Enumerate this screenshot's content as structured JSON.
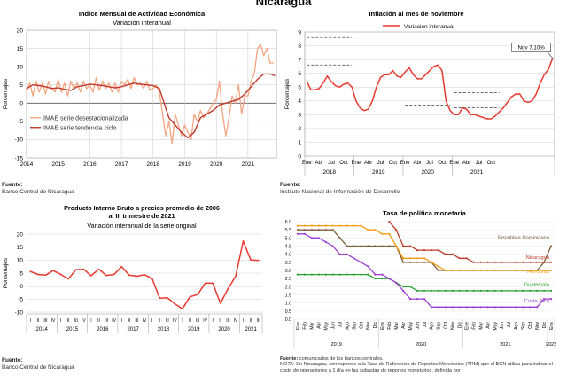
{
  "page_title": "Nicaragua",
  "sources": {
    "p1": {
      "label": "Fuente:",
      "text": "Banco Central de Nicaragua"
    },
    "p2": {
      "label": "Fuente:",
      "text": "Instituto Nacional de Información de  Desarrollo"
    },
    "p3": {
      "label": "Fuente:",
      "text": "Banco Central de Nicaragua"
    },
    "p4": {
      "label": "Fuente:",
      "text": "comunicados de los bancos centrales.",
      "note": "NOTA: En Nicaragua, corresponde a la Tasa de Referencia de Reportos Monetarios (TRM) que el BCN utiliza para indicar el costo de operaciones a 1 día en las subastas de reportos monetarios, definida por"
    }
  },
  "chart_data": [
    {
      "id": "imae",
      "type": "line",
      "title": "Indice Mensual de  Actividad Económica",
      "subtitle": "Variación interanual",
      "ylabel": "Porcentajes",
      "ylim": [
        -15,
        20
      ],
      "yticks": [
        -15,
        -10,
        -5,
        0,
        5,
        10,
        15,
        20
      ],
      "xlim": [
        2014,
        2021.9
      ],
      "xticks": [
        2014,
        2015,
        2016,
        2017,
        2018,
        2019,
        2020,
        2021
      ],
      "grid": true,
      "legend_position": "left-bottom",
      "series": [
        {
          "name": "IMAE serie  desestacionalizada",
          "color": "#f4a582",
          "width": 1.3,
          "x": [
            2014.0,
            2014.1,
            2014.2,
            2014.3,
            2014.4,
            2014.5,
            2014.6,
            2014.7,
            2014.8,
            2014.9,
            2015.0,
            2015.1,
            2015.2,
            2015.3,
            2015.4,
            2015.5,
            2015.6,
            2015.7,
            2015.8,
            2015.9,
            2016.0,
            2016.1,
            2016.2,
            2016.3,
            2016.4,
            2016.5,
            2016.6,
            2016.7,
            2016.8,
            2016.9,
            2017.0,
            2017.1,
            2017.2,
            2017.3,
            2017.4,
            2017.5,
            2017.6,
            2017.7,
            2017.8,
            2017.9,
            2018.0,
            2018.1,
            2018.2,
            2018.3,
            2018.4,
            2018.5,
            2018.6,
            2018.7,
            2018.8,
            2018.9,
            2019.0,
            2019.1,
            2019.2,
            2019.3,
            2019.4,
            2019.5,
            2019.6,
            2019.7,
            2019.8,
            2019.9,
            2020.0,
            2020.1,
            2020.2,
            2020.3,
            2020.4,
            2020.5,
            2020.6,
            2020.7,
            2020.8,
            2020.9,
            2021.0,
            2021.1,
            2021.2,
            2021.3,
            2021.4,
            2021.5,
            2021.6,
            2021.7,
            2021.8
          ],
          "values": [
            3,
            5.5,
            2,
            6,
            3,
            5.5,
            2.5,
            6,
            4,
            3,
            6.5,
            3,
            5.5,
            2,
            6,
            4,
            5.5,
            3,
            6,
            4,
            5,
            3,
            7,
            3.5,
            6,
            4,
            5.5,
            3,
            5.5,
            3,
            6,
            5,
            6.5,
            4,
            7,
            5,
            5.5,
            4,
            6,
            3.5,
            4,
            5,
            3,
            -3,
            -9,
            -5,
            -11,
            -3,
            -6,
            -9,
            -6,
            -8,
            -10,
            -3,
            -5,
            -2,
            -4,
            -3,
            -1.5,
            0,
            1,
            6,
            -3,
            -9,
            -4,
            2,
            0,
            5,
            -3,
            2,
            2,
            6,
            8,
            15,
            16,
            13,
            15,
            11,
            11
          ]
        },
        {
          "name": "IMAE serie  tendencia ciclo",
          "color": "#c0392b",
          "width": 1.4,
          "x": [
            2014.0,
            2014.2,
            2014.4,
            2014.6,
            2014.8,
            2015.0,
            2015.2,
            2015.4,
            2015.6,
            2015.8,
            2016.0,
            2016.2,
            2016.4,
            2016.6,
            2016.8,
            2017.0,
            2017.2,
            2017.4,
            2017.6,
            2017.8,
            2018.0,
            2018.2,
            2018.35,
            2018.5,
            2018.7,
            2018.9,
            2019.1,
            2019.3,
            2019.5,
            2019.7,
            2019.9,
            2020.1,
            2020.3,
            2020.5,
            2020.7,
            2020.9,
            2021.1,
            2021.3,
            2021.5,
            2021.7,
            2021.85
          ],
          "values": [
            4,
            5,
            4.8,
            4.5,
            4,
            4.2,
            3.8,
            3.5,
            4.5,
            4.8,
            5.2,
            5,
            4.8,
            4.5,
            4.2,
            4.5,
            5,
            5.5,
            5.2,
            5,
            4.8,
            4,
            0,
            -4,
            -6,
            -8,
            -9.5,
            -8,
            -4,
            -3,
            -2,
            -0.5,
            0,
            0.5,
            1,
            2.5,
            4.5,
            6.5,
            8,
            8,
            7.5
          ]
        }
      ]
    },
    {
      "id": "inflacion",
      "type": "line",
      "title": "Inflación al mes de noviembre",
      "ylabel": "Porcentajes",
      "ylim": [
        0,
        9
      ],
      "yticks": [
        0,
        1,
        2,
        3,
        4,
        5,
        6,
        7,
        8,
        9
      ],
      "months": [
        "Ene",
        "Abr",
        "Jul",
        "Oct",
        "Ene",
        "Abr",
        "Jul",
        "Oct",
        "Ene",
        "Abr",
        "Jul",
        "Oct",
        "Ene",
        "Abr",
        "Jul",
        "Oct"
      ],
      "years": [
        "2018",
        "2019",
        "2020",
        "2021"
      ],
      "grid": true,
      "callout": "Nov 7.10%",
      "series": [
        {
          "name": "Variación interanual",
          "color": "#e8392f",
          "values": [
            5.4,
            4.8,
            4.8,
            4.9,
            5.3,
            5.8,
            5.4,
            5.1,
            5.0,
            5.2,
            5.3,
            5.0,
            4.0,
            3.5,
            3.3,
            3.4,
            4.0,
            5.0,
            5.7,
            5.9,
            5.9,
            6.2,
            5.8,
            5.7,
            6.1,
            6.4,
            5.9,
            5.6,
            5.6,
            5.9,
            6.2,
            6.5,
            6.6,
            6.2,
            4.0,
            3.3,
            3.0,
            3.0,
            3.5,
            3.4,
            3.0,
            3.0,
            2.9,
            2.8,
            2.7,
            2.7,
            2.9,
            3.2,
            3.5,
            3.9,
            4.3,
            4.5,
            4.5,
            4.0,
            3.9,
            4.0,
            4.5,
            5.3,
            5.9,
            6.3,
            7.1
          ]
        }
      ],
      "reference_lines": [
        {
          "value": 8.6,
          "from": 0,
          "to": 11
        },
        {
          "value": 6.6,
          "from": 0,
          "to": 11
        },
        {
          "value": 3.7,
          "from": 24,
          "to": 35
        },
        {
          "value": 4.6,
          "from": 36,
          "to": 47
        },
        {
          "value": 3.5,
          "from": 36,
          "to": 47
        }
      ]
    },
    {
      "id": "pib",
      "type": "line",
      "title": "Producto Interno Bruto a precios promedio de 2006",
      "title2": "al III trimestre de 2021",
      "subtitle": "Variación interanual de la serie original",
      "ylabel": "Porcentajes",
      "ylim": [
        -10,
        20
      ],
      "yticks": [
        -10,
        -5,
        0,
        5,
        10,
        15,
        20
      ],
      "quarters": [
        "I",
        "II",
        "III",
        "IV",
        "I",
        "II",
        "III",
        "IV",
        "I",
        "II",
        "III",
        "IV",
        "I",
        "II",
        "III",
        "IV",
        "I",
        "II",
        "III",
        "IV",
        "I",
        "II",
        "III",
        "IV",
        "I",
        "II",
        "III",
        "IV",
        "I",
        "II",
        "III"
      ],
      "years": [
        "2014",
        "2015",
        "2016",
        "2017",
        "2018",
        "2019",
        "2020",
        "2021"
      ],
      "grid": true,
      "series": [
        {
          "name": "",
          "color": "#e8392f",
          "values": [
            5.6,
            4.5,
            4.2,
            6.0,
            4.5,
            2.8,
            6.3,
            6.5,
            4.0,
            6.5,
            4.1,
            4.5,
            7.5,
            4.2,
            3.8,
            4.4,
            3.0,
            -4.6,
            -4.4,
            -6.8,
            -8.7,
            -4.1,
            -3.2,
            1.1,
            1.1,
            -6.6,
            -1.0,
            3.8,
            17.3,
            10.0,
            9.9
          ]
        }
      ]
    },
    {
      "id": "tasa",
      "type": "line",
      "title": "Tasa de política monetaria",
      "ylim": [
        0,
        6
      ],
      "yticks": [
        0,
        0.5,
        1.0,
        1.5,
        2.0,
        2.5,
        3.0,
        3.5,
        4.0,
        4.5,
        5.0,
        5.5,
        6.0
      ],
      "ytick_labels": [
        "0.0",
        "0.5",
        "1.0",
        "1.5",
        "2.0",
        "2.5",
        "3.0",
        "3.5",
        "4.0",
        "4.5",
        "5.0",
        "5.5",
        "6.0"
      ],
      "months": [
        "Ene",
        "Feb",
        "Mar",
        "Abr",
        "May",
        "Jun",
        "Jul",
        "Ago",
        "Sep",
        "Oct",
        "Nov",
        "Dic",
        "Ene",
        "Feb",
        "Mar",
        "Abr",
        "May",
        "Jun",
        "Jul",
        "Ago",
        "Sep",
        "Oct",
        "Nov",
        "Dic",
        "Ene",
        "Feb",
        "Mar",
        "Abr",
        "May",
        "Jun",
        "Jul",
        "Ago",
        "Sep",
        "Oct",
        "Nov",
        "Dic",
        "Ene"
      ],
      "years": [
        "2019",
        "2020",
        "2021",
        "2022"
      ],
      "grid": true,
      "series": [
        {
          "name": "República Dominicana",
          "color": "#7b5e3c",
          "values": [
            5.5,
            5.5,
            5.5,
            5.5,
            5.5,
            5.5,
            5.0,
            4.5,
            4.5,
            4.5,
            4.5,
            4.5,
            4.5,
            4.5,
            4.5,
            3.5,
            3.5,
            3.5,
            3.5,
            3.5,
            3.0,
            3.0,
            3.0,
            3.0,
            3.0,
            3.0,
            3.0,
            3.0,
            3.0,
            3.0,
            3.0,
            3.0,
            3.0,
            3.0,
            3.0,
            3.5,
            4.5
          ]
        },
        {
          "name": "Nicaragua",
          "color": "#c0392b",
          "values": [
            null,
            null,
            null,
            null,
            null,
            null,
            null,
            null,
            null,
            null,
            null,
            null,
            null,
            6.0,
            5.5,
            4.5,
            4.5,
            4.25,
            4.25,
            4.25,
            4.25,
            4.0,
            4.0,
            3.75,
            3.75,
            3.5,
            3.5,
            3.5,
            3.5,
            3.5,
            3.5,
            3.5,
            3.5,
            3.5,
            3.5,
            3.5,
            3.5
          ]
        },
        {
          "name": "Honduras",
          "color": "#f39c12",
          "values": [
            5.75,
            5.75,
            5.75,
            5.75,
            5.75,
            5.75,
            5.75,
            5.75,
            5.75,
            5.75,
            5.5,
            5.5,
            5.25,
            5.25,
            4.5,
            3.75,
            3.75,
            3.75,
            3.75,
            3.5,
            3.25,
            3.0,
            3.0,
            3.0,
            3.0,
            3.0,
            3.0,
            3.0,
            3.0,
            3.0,
            3.0,
            3.0,
            3.0,
            3.0,
            3.0,
            3.0,
            3.0
          ]
        },
        {
          "name": "Guatemala",
          "color": "#2ca02c",
          "values": [
            2.75,
            2.75,
            2.75,
            2.75,
            2.75,
            2.75,
            2.75,
            2.75,
            2.75,
            2.75,
            2.75,
            2.5,
            2.5,
            2.5,
            2.25,
            2.0,
            2.0,
            1.75,
            1.75,
            1.75,
            1.75,
            1.75,
            1.75,
            1.75,
            1.75,
            1.75,
            1.75,
            1.75,
            1.75,
            1.75,
            1.75,
            1.75,
            1.75,
            1.75,
            1.75,
            1.75,
            1.75
          ]
        },
        {
          "name": "Costa Rica",
          "color": "#9b3fd0",
          "values": [
            5.25,
            5.25,
            5.0,
            5.0,
            4.75,
            4.5,
            4.0,
            4.0,
            3.75,
            3.5,
            3.25,
            2.75,
            2.75,
            2.5,
            2.25,
            1.75,
            1.25,
            1.25,
            1.25,
            0.75,
            0.75,
            0.75,
            0.75,
            0.75,
            0.75,
            0.75,
            0.75,
            0.75,
            0.75,
            0.75,
            0.75,
            0.75,
            0.75,
            0.75,
            0.75,
            1.25,
            1.25
          ]
        }
      ]
    }
  ]
}
